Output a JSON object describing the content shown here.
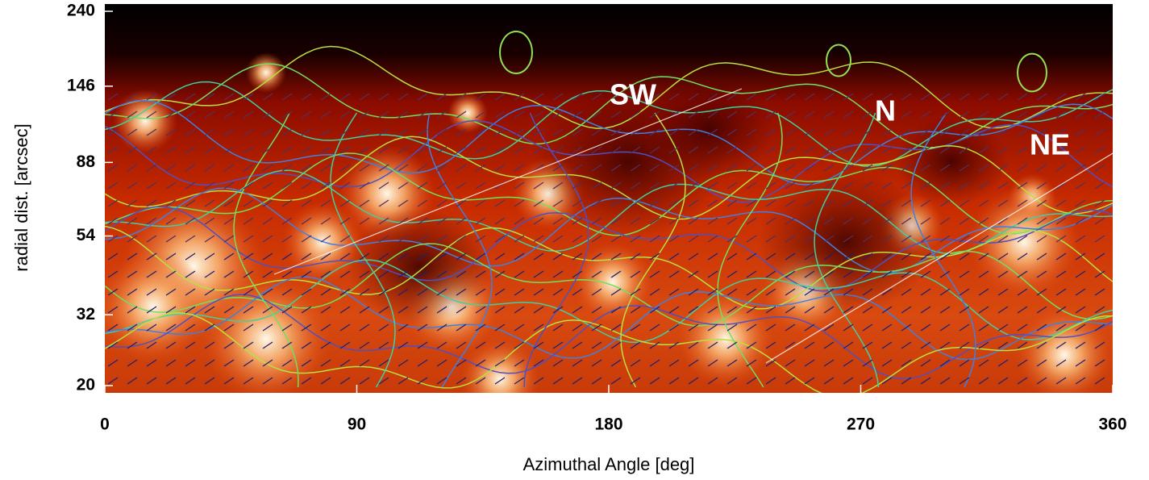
{
  "chart_data": {
    "type": "image-map",
    "xlabel": "Azimuthal Angle [deg]",
    "ylabel": "radial dist. [arcsec]",
    "xlim": [
      0,
      360
    ],
    "xticks": [
      0,
      90,
      180,
      270,
      360
    ],
    "ylim": [
      20,
      240
    ],
    "yticks": [
      20,
      32,
      54,
      88,
      146,
      240
    ],
    "ylog": true,
    "annotations": [
      "SW",
      "N",
      "NE"
    ]
  }
}
